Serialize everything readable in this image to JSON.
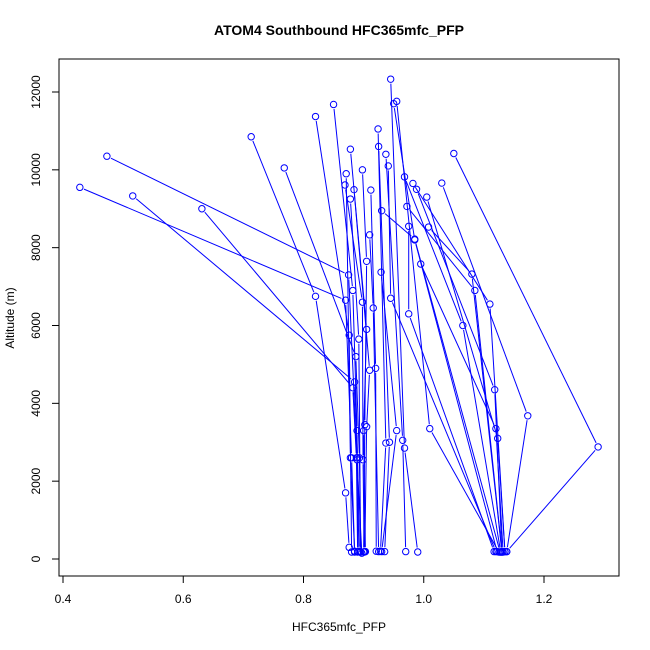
{
  "chart_data": {
    "type": "line",
    "title": "ATOM4 Southbound HFC365mfc_PFP",
    "xlabel": "HFC365mfc_PFP",
    "ylabel": "Altitude (m)",
    "xlim": [
      0.4,
      1.3
    ],
    "ylim": [
      0,
      12500
    ],
    "xticks": [
      0.4,
      0.6,
      0.8,
      1.0,
      1.2
    ],
    "xtick_labels": [
      "0.4",
      "0.6",
      "0.8",
      "1.0",
      "1.2"
    ],
    "yticks": [
      0,
      2000,
      4000,
      6000,
      8000,
      10000,
      12000
    ],
    "ytick_labels": [
      "0",
      "2000",
      "4000",
      "6000",
      "8000",
      "10000",
      "12000"
    ],
    "grid": false,
    "legend": "none",
    "color": "#0000ff",
    "marker": "open-circle",
    "series": [
      {
        "x": [
          0.473,
          0.875,
          0.889,
          0.897
        ],
        "y": [
          10350,
          7300,
          2550,
          150
        ]
      },
      {
        "x": [
          0.428,
          0.87,
          0.88,
          0.885
        ],
        "y": [
          9550,
          6650,
          2600,
          180
        ]
      },
      {
        "x": [
          0.516,
          0.885,
          0.89,
          0.893
        ],
        "y": [
          9330,
          4550,
          2600,
          200
        ]
      },
      {
        "x": [
          0.631,
          0.882,
          0.888,
          0.89
        ],
        "y": [
          9000,
          4400,
          2600,
          180
        ]
      },
      {
        "x": [
          0.713,
          0.82,
          0.87,
          0.876
        ],
        "y": [
          10850,
          6750,
          1700,
          300
        ]
      },
      {
        "x": [
          0.768,
          0.887,
          0.893,
          0.895
        ],
        "y": [
          10050,
          5200,
          2600,
          180
        ]
      },
      {
        "x": [
          0.82,
          0.876,
          0.88
        ],
        "y": [
          11370,
          5750,
          180
        ]
      },
      {
        "x": [
          0.85,
          0.882,
          0.889,
          0.891
        ],
        "y": [
          11680,
          6900,
          3300,
          190
        ]
      },
      {
        "x": [
          0.871,
          0.878,
          0.885
        ],
        "y": [
          9900,
          2600,
          200
        ]
      },
      {
        "x": [
          0.878,
          0.905,
          0.9,
          0.903
        ],
        "y": [
          10530,
          5900,
          3300,
          190
        ]
      },
      {
        "x": [
          0.869,
          0.898,
          0.899,
          0.901
        ],
        "y": [
          9610,
          6600,
          2550,
          180
        ]
      },
      {
        "x": [
          0.884,
          0.91,
          0.905,
          0.902
        ],
        "y": [
          9490,
          4850,
          3400,
          190
        ]
      },
      {
        "x": [
          0.878,
          0.892,
          0.895
        ],
        "y": [
          9250,
          5650,
          180
        ]
      },
      {
        "x": [
          0.898,
          0.905,
          0.902,
          0.9
        ],
        "y": [
          10000,
          7650,
          3450,
          180
        ]
      },
      {
        "x": [
          0.912,
          0.92,
          0.921
        ],
        "y": [
          9480,
          4900,
          200
        ]
      },
      {
        "x": [
          0.91,
          0.916,
          0.925
        ],
        "y": [
          8330,
          6450,
          190
        ]
      },
      {
        "x": [
          0.924,
          0.937,
          0.928
        ],
        "y": [
          11050,
          2980,
          200
        ]
      },
      {
        "x": [
          0.925,
          0.943,
          0.935
        ],
        "y": [
          10600,
          3000,
          190
        ]
      },
      {
        "x": [
          0.929,
          0.955,
          0.93
        ],
        "y": [
          7370,
          3300,
          190
        ]
      },
      {
        "x": [
          0.937,
          0.965,
          0.97
        ],
        "y": [
          10400,
          3050,
          190
        ]
      },
      {
        "x": [
          0.945,
          0.968,
          0.99
        ],
        "y": [
          12330,
          2850,
          180
        ]
      },
      {
        "x": [
          0.941,
          0.945,
          1.12
        ],
        "y": [
          10100,
          6700,
          190
        ]
      },
      {
        "x": [
          0.95,
          0.985,
          1.122
        ],
        "y": [
          11700,
          8200,
          190
        ]
      },
      {
        "x": [
          0.955,
          1.01,
          1.125
        ],
        "y": [
          11760,
          3350,
          180
        ]
      },
      {
        "x": [
          0.968,
          1.065,
          1.128
        ],
        "y": [
          9820,
          6000,
          180
        ]
      },
      {
        "x": [
          0.972,
          1.085,
          1.13
        ],
        "y": [
          9060,
          6900,
          190
        ]
      },
      {
        "x": [
          0.975,
          0.975,
          1.117
        ],
        "y": [
          8550,
          6300,
          190
        ]
      },
      {
        "x": [
          0.982,
          1.11,
          1.135
        ],
        "y": [
          9650,
          6550,
          190
        ]
      },
      {
        "x": [
          0.988,
          1.118,
          1.13
        ],
        "y": [
          9500,
          4350,
          180
        ]
      },
      {
        "x": [
          0.995,
          1.12,
          1.132
        ],
        "y": [
          7580,
          3350,
          180
        ]
      },
      {
        "x": [
          1.005,
          1.123,
          1.135
        ],
        "y": [
          9300,
          3100,
          190
        ]
      },
      {
        "x": [
          1.03,
          1.173,
          1.138
        ],
        "y": [
          9660,
          3680,
          190
        ]
      },
      {
        "x": [
          1.05,
          1.29,
          1.138
        ],
        "y": [
          10420,
          2880,
          190
        ]
      },
      {
        "x": [
          1.008,
          1.08,
          1.13
        ],
        "y": [
          8530,
          7320,
          180
        ]
      },
      {
        "x": [
          0.93,
          0.985,
          1.127
        ],
        "y": [
          8950,
          8220,
          180
        ]
      }
    ]
  }
}
